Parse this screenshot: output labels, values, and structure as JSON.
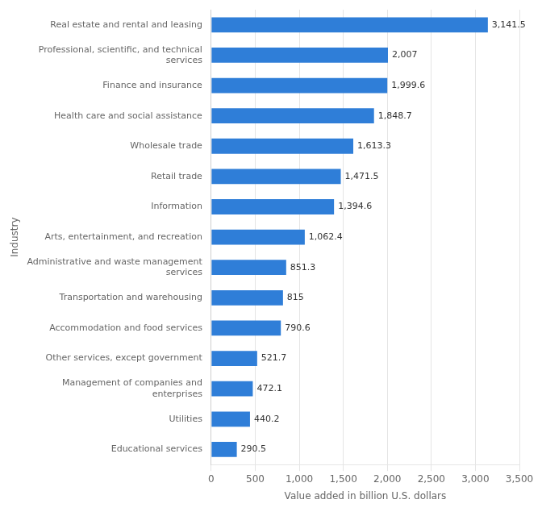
{
  "chart_data": {
    "type": "bar",
    "orientation": "horizontal",
    "categories": [
      "Educational services",
      "Utilities",
      "Management of companies and\nenterprises",
      "Other services, except government",
      "Accommodation and food services",
      "Transportation and warehousing",
      "Administrative and waste management\nservices",
      "Arts, entertainment, and recreation",
      "Information",
      "Retail trade",
      "Wholesale trade",
      "Health care and social assistance",
      "Finance and insurance",
      "Professional, scientific, and technical\nservices",
      "Real estate and rental and leasing"
    ],
    "values": [
      290.5,
      440.2,
      472.1,
      521.7,
      790.6,
      815.0,
      851.3,
      1062.4,
      1394.6,
      1471.5,
      1613.3,
      1848.7,
      1999.6,
      2007.0,
      3141.5
    ],
    "value_labels": [
      "290.5",
      "440.2",
      "472.1",
      "521.7",
      "790.6",
      "815",
      "851.3",
      "1,062.4",
      "1,394.6",
      "1,471.5",
      "1,613.3",
      "1,848.7",
      "1,999.6",
      "2,007",
      "3,141.5"
    ],
    "data_labels": true,
    "color": "#2f7ed8",
    "xlabel": "Value added in billion U.S. dollars",
    "ylabel": "Industry",
    "xlim": [
      0,
      3500
    ],
    "xticks": [
      0,
      500,
      {
        "value": 1000,
        "label": "1,000"
      },
      {
        "value": 1500,
        "label": "1,500"
      },
      {
        "value": 2000,
        "label": "2,000"
      },
      {
        "value": 2500,
        "label": "2,500"
      },
      {
        "value": 3000,
        "label": "3,000"
      },
      {
        "value": 3500,
        "label": "3,500"
      }
    ],
    "grid": true
  }
}
